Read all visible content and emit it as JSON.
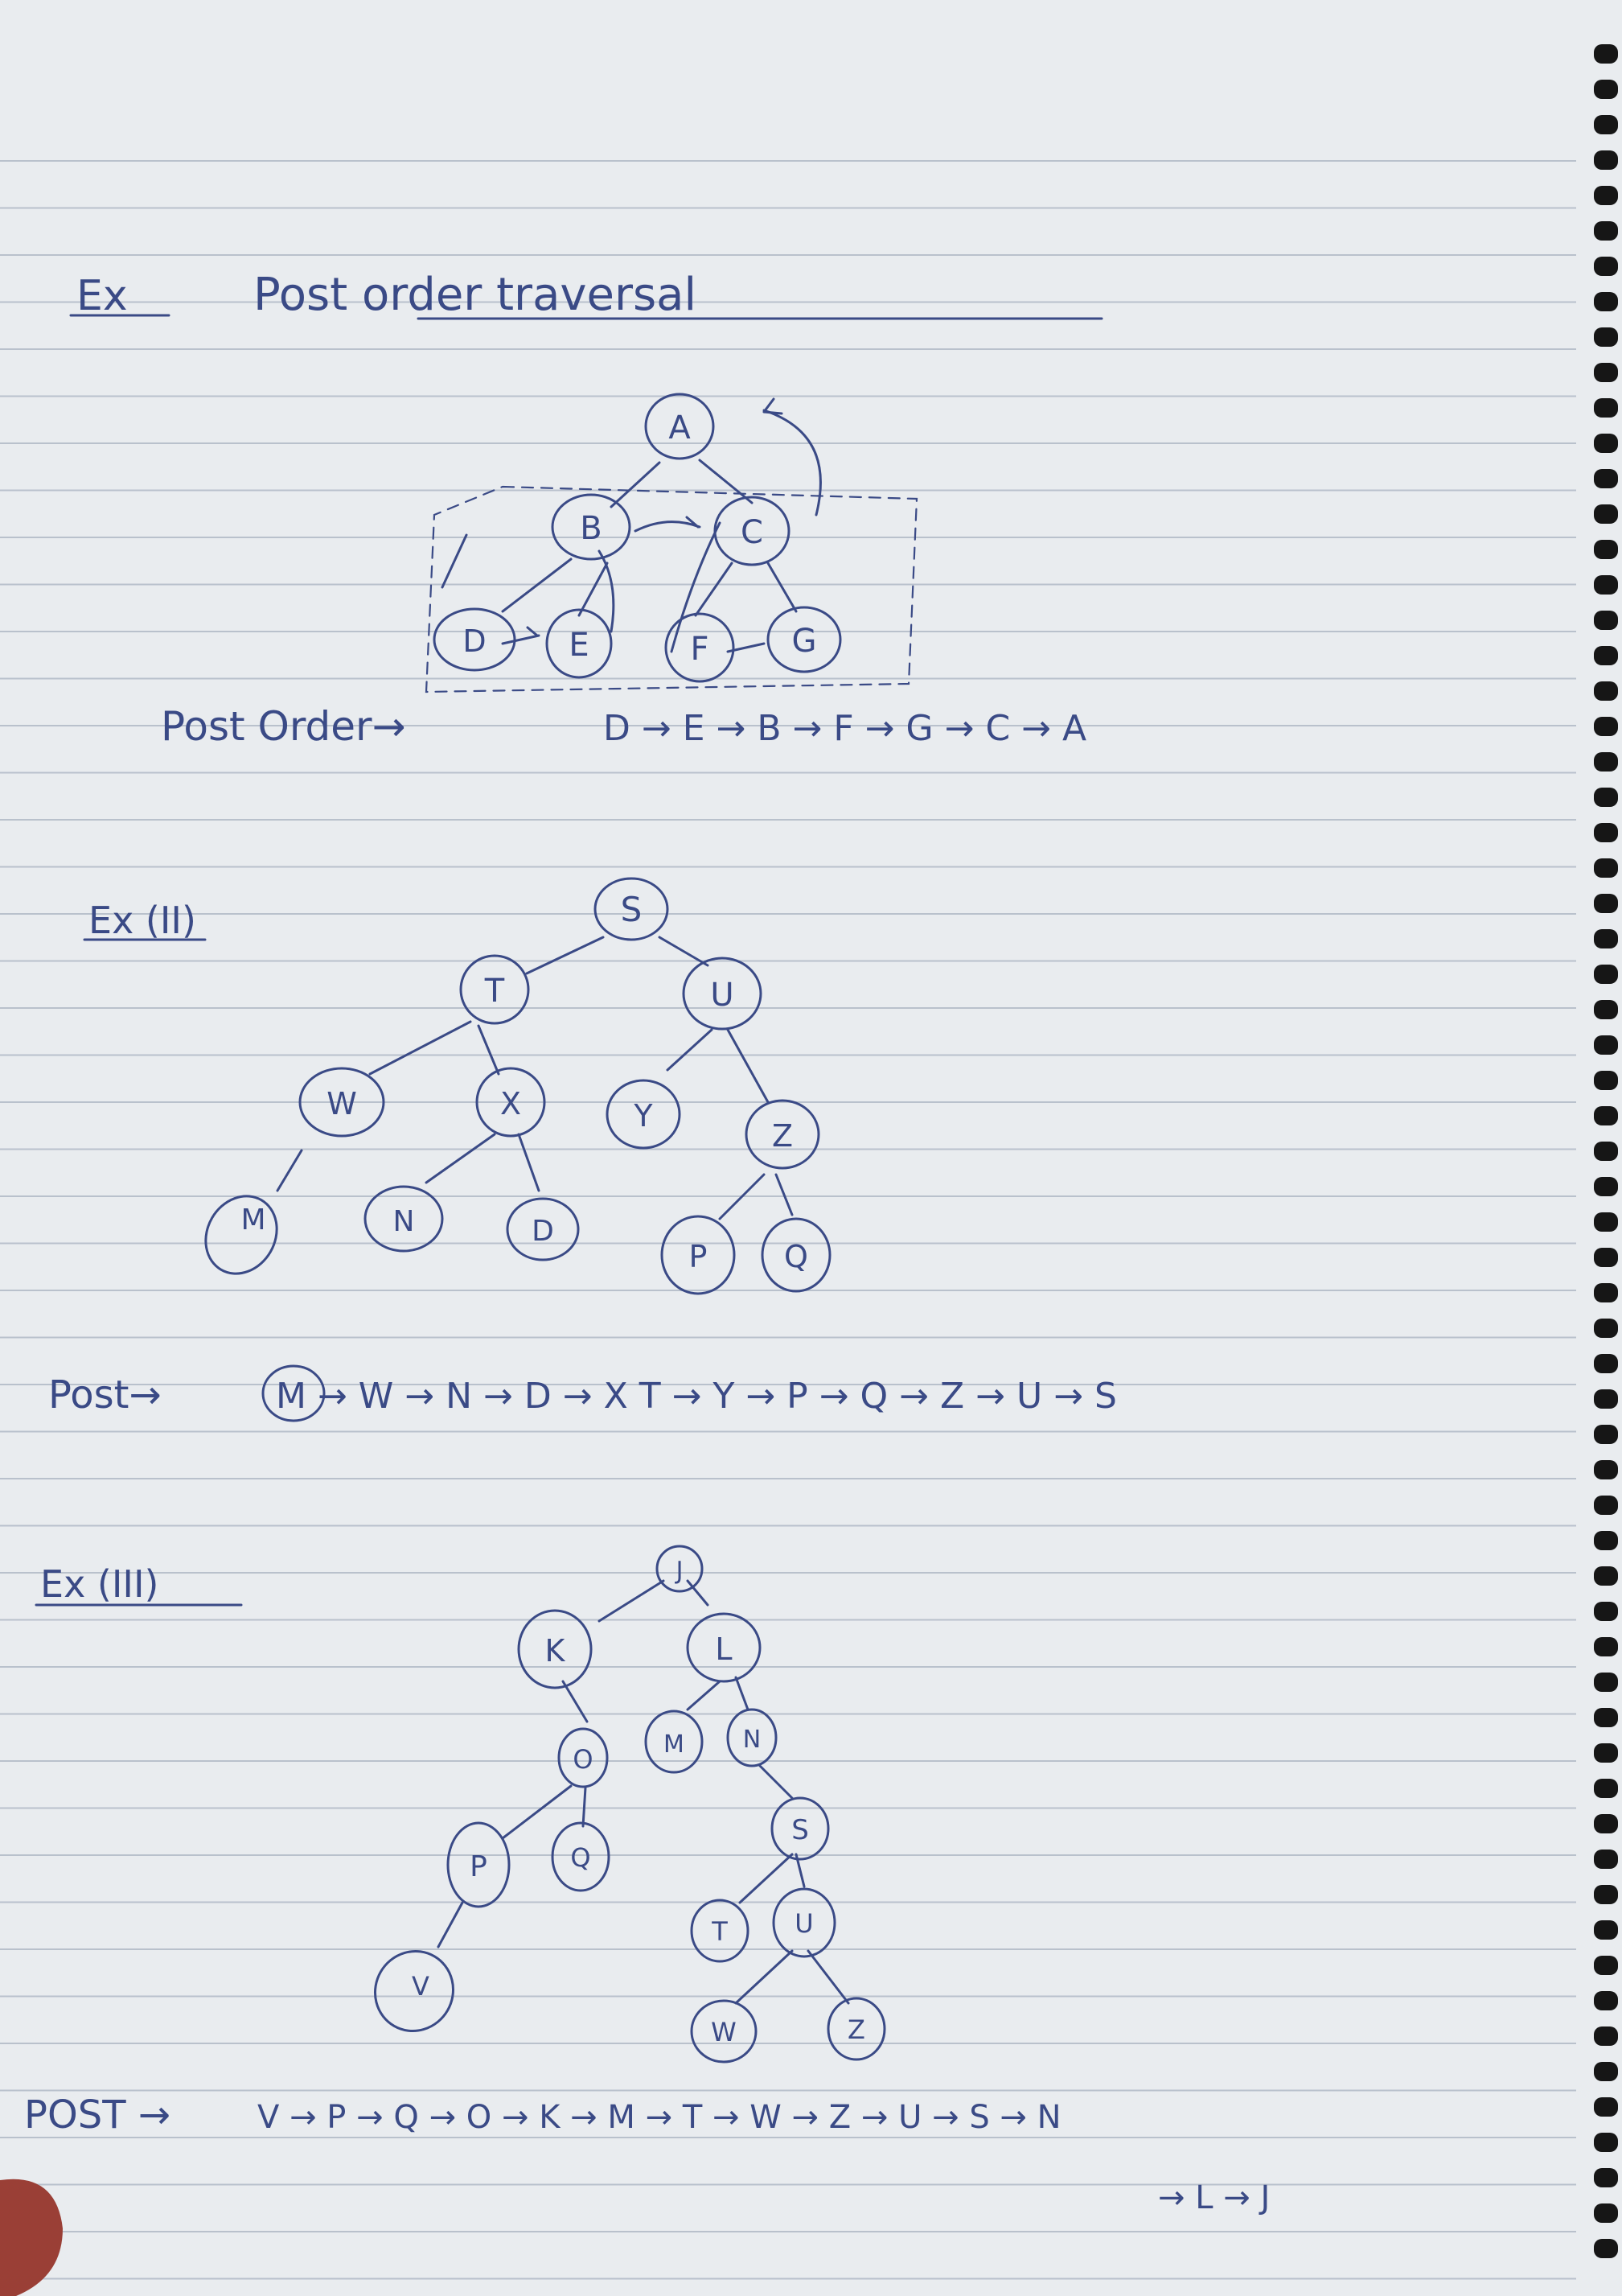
{
  "heading": {
    "prefix": "Ex",
    "title": "Post order traversal"
  },
  "examples": [
    {
      "label": "",
      "nodes": [
        "A",
        "B",
        "C",
        "D",
        "E",
        "F",
        "G"
      ],
      "traversal_label": "Post Order→",
      "sequence": "D → E → B → F → G → C → A",
      "sequence_cont": ""
    },
    {
      "label": "Ex (II)",
      "nodes": [
        "S",
        "T",
        "U",
        "W",
        "X",
        "Y",
        "Z",
        "M",
        "N",
        "D",
        "P",
        "Q"
      ],
      "traversal_label": "Post→",
      "sequence": "M → W → N → D → X T → Y → P → Q → Z → U → S",
      "sequence_cont": ""
    },
    {
      "label": "Ex (III)",
      "nodes": [
        "J",
        "K",
        "L",
        "O",
        "M",
        "N",
        "P",
        "Q",
        "S",
        "V",
        "T",
        "U",
        "W",
        "Z"
      ],
      "traversal_label": "POST →",
      "sequence": "V → P → Q → O → K → M → T → W → Z → U → S → N",
      "sequence_cont": "→ L → J"
    }
  ],
  "colors": {
    "ink": "#3a4a86",
    "paper": "#e9ecef",
    "rule": "#b9c1cc",
    "binding": "#161616"
  }
}
